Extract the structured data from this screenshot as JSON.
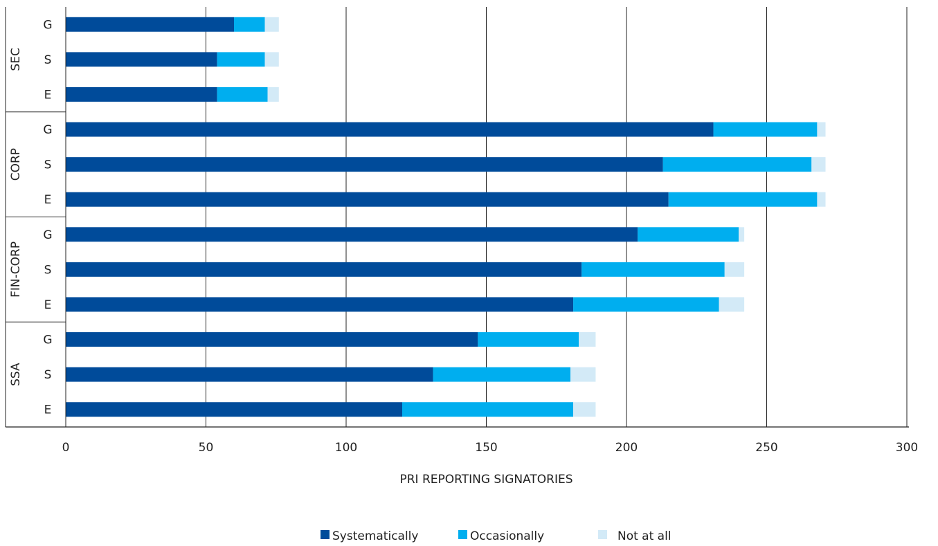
{
  "chart_data": {
    "type": "bar",
    "orientation": "horizontal",
    "stacked": true,
    "xlabel": "PRI REPORTING SIGNATORIES",
    "xlim": [
      0,
      300
    ],
    "xticks": [
      "0",
      "50",
      "100",
      "150",
      "200",
      "250",
      "300"
    ],
    "grid": "vertical",
    "legend_position": "bottom-center",
    "groups": [
      {
        "name": "SEC",
        "categories": [
          "G",
          "S",
          "E"
        ]
      },
      {
        "name": "CORP",
        "categories": [
          "G",
          "S",
          "E"
        ]
      },
      {
        "name": "FIN-CORP",
        "categories": [
          "G",
          "S",
          "E"
        ]
      },
      {
        "name": "SSA",
        "categories": [
          "G",
          "S",
          "E"
        ]
      }
    ],
    "series": [
      {
        "name": "Systematically",
        "color": "#004B9A",
        "values": [
          60,
          54,
          54,
          231,
          213,
          215,
          204,
          184,
          181,
          147,
          131,
          120
        ]
      },
      {
        "name": "Occasionally",
        "color": "#00AEEF",
        "values": [
          11,
          17,
          18,
          37,
          53,
          53,
          36,
          51,
          52,
          36,
          49,
          61
        ]
      },
      {
        "name": "Not at all",
        "color": "#D3EAF7",
        "values": [
          5,
          5,
          4,
          3,
          5,
          3,
          2,
          7,
          9,
          6,
          9,
          8
        ]
      }
    ]
  }
}
